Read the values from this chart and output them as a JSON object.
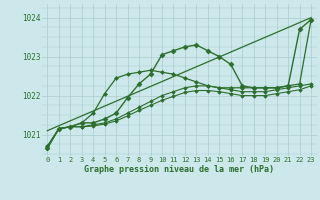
{
  "background_color": "#cce8ea",
  "grid_color": "#aacccc",
  "line_color": "#2d6e2d",
  "xlabel": "Graphe pression niveau de la mer (hPa)",
  "ylabel_ticks": [
    1021,
    1022,
    1023,
    1024
  ],
  "xlim": [
    -0.5,
    23.5
  ],
  "ylim": [
    1020.45,
    1024.35
  ],
  "series": [
    {
      "x": [
        0,
        1,
        2,
        3,
        4,
        5,
        6,
        7,
        8,
        9,
        10,
        11,
        12,
        13,
        14,
        15,
        16,
        17,
        18,
        19,
        20,
        21,
        22,
        23
      ],
      "y": [
        1020.65,
        1021.15,
        1021.2,
        1021.3,
        1021.3,
        1021.4,
        1021.55,
        1021.95,
        1022.3,
        1022.55,
        1023.05,
        1023.15,
        1023.25,
        1023.3,
        1023.15,
        1023.0,
        1022.8,
        1022.25,
        1022.2,
        1022.2,
        1022.2,
        1022.25,
        1023.7,
        1023.95
      ],
      "marker": "D",
      "markersize": 2.5,
      "linewidth": 1.0
    },
    {
      "x": [
        0,
        1,
        2,
        3,
        4,
        5,
        6,
        7,
        8,
        9,
        10,
        11,
        12,
        13,
        14,
        15,
        16,
        17,
        18,
        19,
        20,
        21,
        22,
        23
      ],
      "y": [
        1020.65,
        1021.15,
        1021.2,
        1021.3,
        1021.55,
        1022.05,
        1022.45,
        1022.55,
        1022.6,
        1022.65,
        1022.6,
        1022.55,
        1022.45,
        1022.35,
        1022.25,
        1022.2,
        1022.2,
        1022.2,
        1022.2,
        1022.2,
        1022.2,
        1022.25,
        1022.3,
        1023.95
      ],
      "marker": "D",
      "markersize": 2.0,
      "linewidth": 0.9
    },
    {
      "x": [
        0,
        1,
        2,
        3,
        4,
        5,
        6,
        7,
        8,
        9,
        10,
        11,
        12,
        13,
        14,
        15,
        16,
        17,
        18,
        19,
        20,
        21,
        22,
        23
      ],
      "y": [
        1020.7,
        1021.15,
        1021.2,
        1021.2,
        1021.25,
        1021.3,
        1021.4,
        1021.55,
        1021.7,
        1021.85,
        1022.0,
        1022.1,
        1022.2,
        1022.25,
        1022.25,
        1022.2,
        1022.15,
        1022.1,
        1022.1,
        1022.1,
        1022.15,
        1022.2,
        1022.25,
        1022.3
      ],
      "marker": "D",
      "markersize": 1.8,
      "linewidth": 0.8
    },
    {
      "x": [
        0,
        1,
        2,
        3,
        4,
        5,
        6,
        7,
        8,
        9,
        10,
        11,
        12,
        13,
        14,
        15,
        16,
        17,
        18,
        19,
        20,
        21,
        22,
        23
      ],
      "y": [
        1020.7,
        1021.15,
        1021.2,
        1021.2,
        1021.22,
        1021.27,
        1021.35,
        1021.48,
        1021.62,
        1021.75,
        1021.88,
        1021.98,
        1022.08,
        1022.13,
        1022.13,
        1022.1,
        1022.05,
        1022.0,
        1022.0,
        1022.0,
        1022.05,
        1022.1,
        1022.15,
        1022.25
      ],
      "marker": "D",
      "markersize": 1.8,
      "linewidth": 0.8
    },
    {
      "x": [
        0,
        23
      ],
      "y": [
        1021.1,
        1024.0
      ],
      "marker": "None",
      "markersize": 0,
      "linewidth": 0.9
    }
  ]
}
